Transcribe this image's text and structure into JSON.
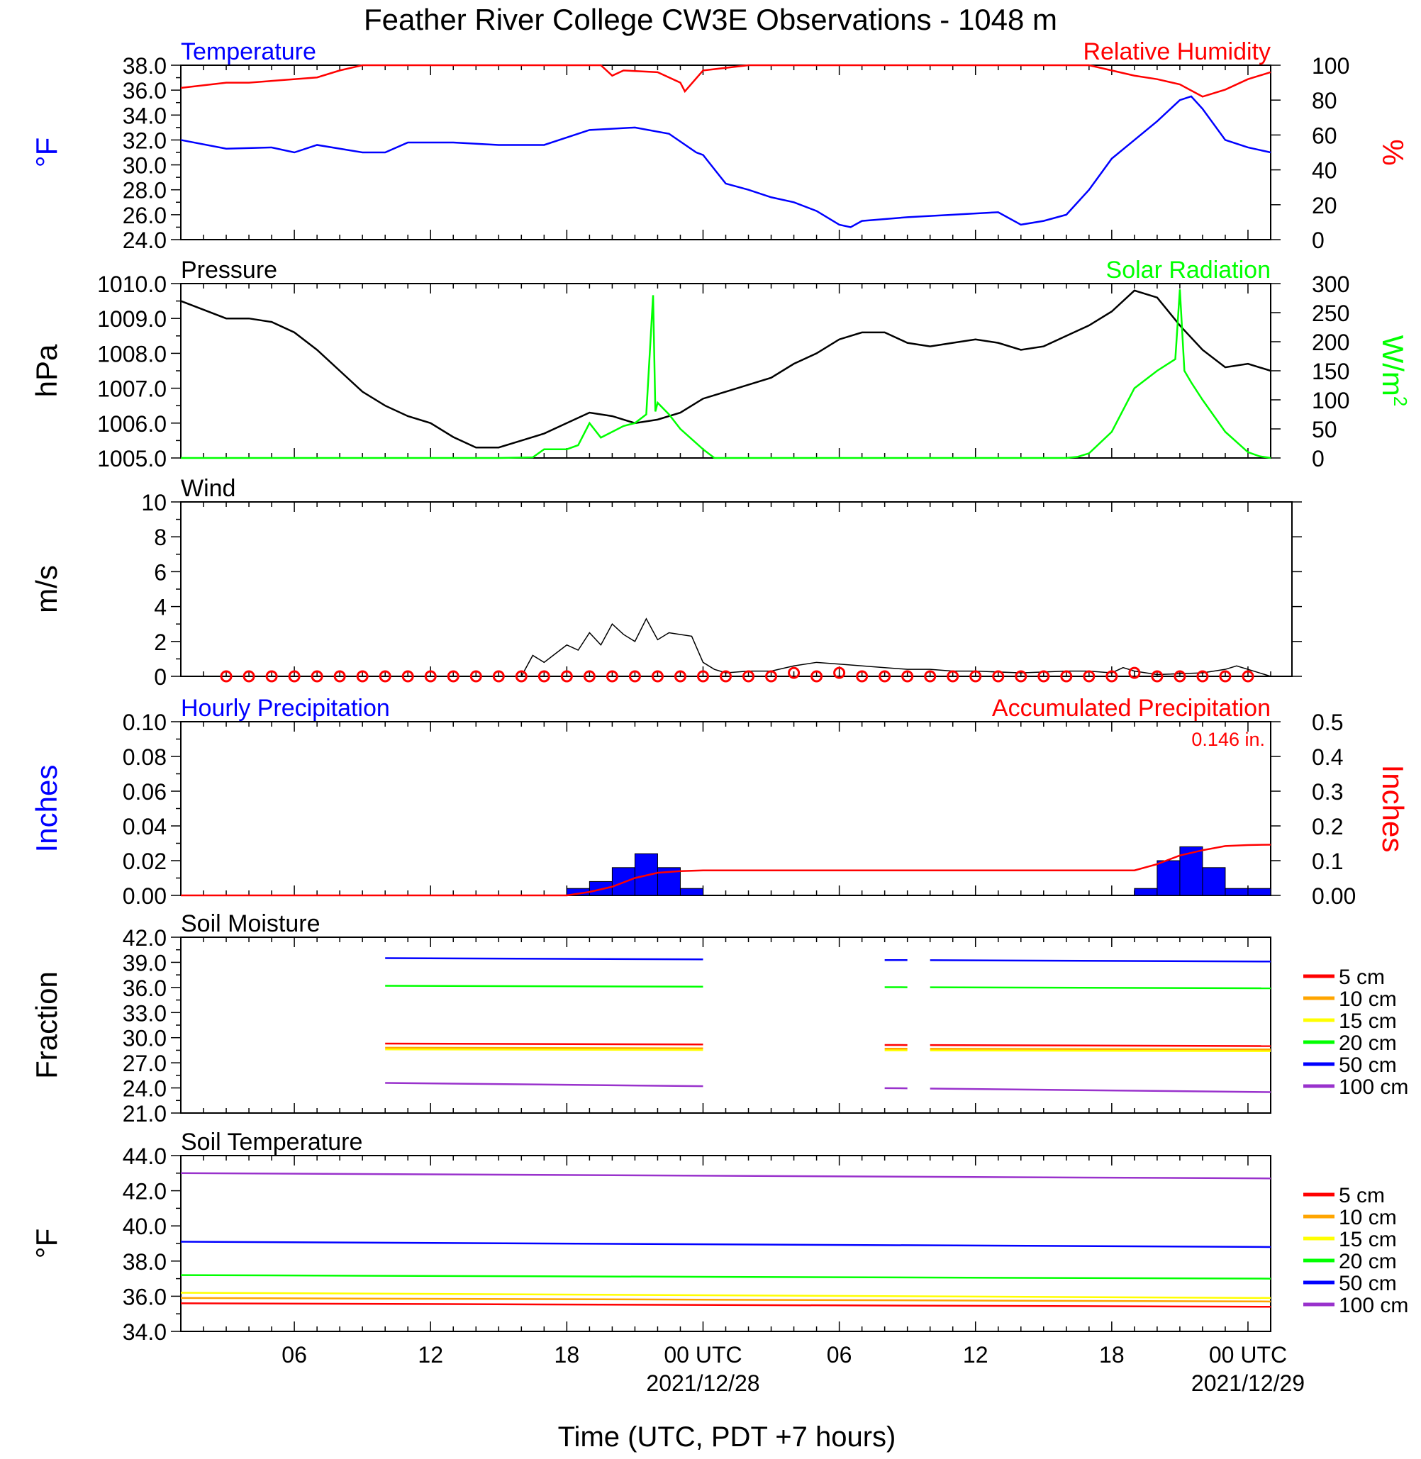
{
  "title": "Feather River College CW3E Observations - 1048 m",
  "xlabel": "Time (UTC, PDT +7 hours)",
  "time_axis": {
    "range_hours": [
      -23,
      25
    ],
    "ticks": [
      {
        "h": -18,
        "label": "06",
        "date": ""
      },
      {
        "h": -12,
        "label": "12",
        "date": ""
      },
      {
        "h": -6,
        "label": "18",
        "date": ""
      },
      {
        "h": 0,
        "label": "00 UTC",
        "date": "2021/12/28"
      },
      {
        "h": 6,
        "label": "06",
        "date": ""
      },
      {
        "h": 12,
        "label": "12",
        "date": ""
      },
      {
        "h": 18,
        "label": "18",
        "date": ""
      },
      {
        "h": 24,
        "label": "00 UTC",
        "date": "2021/12/29"
      }
    ]
  },
  "colors": {
    "temperature": "#0000ff",
    "humidity": "#ff0000",
    "pressure": "#000000",
    "solar": "#00ff00",
    "wind": "#000000",
    "wind_marker": "#ff0000",
    "hourly_precip": "#0000ff",
    "accum_precip": "#ff0000",
    "depth_5": "#ff0000",
    "depth_10": "#ffa500",
    "depth_15": "#ffff00",
    "depth_20": "#00ff00",
    "depth_50": "#0000ff",
    "depth_100": "#9932cc"
  },
  "chart_data": [
    {
      "type": "line",
      "id": "temp_rh",
      "title_left": "Temperature",
      "title_right": "Relative Humidity",
      "ylabel": "°F",
      "ylabel_right": "%",
      "ylim": [
        24,
        38
      ],
      "yticks": [
        "24.0",
        "26.0",
        "28.0",
        "30.0",
        "32.0",
        "34.0",
        "36.0",
        "38.0"
      ],
      "ylim_right": [
        0,
        100
      ],
      "yticks_right": [
        "0",
        "20",
        "40",
        "60",
        "80",
        "100"
      ],
      "series": [
        {
          "name": "Temperature",
          "axis": "left",
          "x": [
            -23,
            -21,
            -19,
            -18,
            -17,
            -15,
            -14,
            -13,
            -11,
            -9,
            -7,
            -5,
            -3,
            -1.5,
            -0.3,
            0,
            1,
            2,
            3,
            4,
            5,
            6,
            6.5,
            7,
            9,
            11,
            13,
            14,
            15,
            16,
            17,
            18,
            19,
            20,
            21,
            21.5,
            22,
            23,
            24,
            25
          ],
          "y": [
            32.0,
            31.3,
            31.4,
            31.0,
            31.6,
            31.0,
            31.0,
            31.8,
            31.8,
            31.6,
            31.6,
            32.8,
            33.0,
            32.5,
            31.0,
            30.8,
            28.5,
            28.0,
            27.4,
            27.0,
            26.3,
            25.2,
            25.0,
            25.5,
            25.8,
            26.0,
            26.2,
            25.2,
            25.5,
            26.0,
            28.0,
            30.5,
            32.0,
            33.5,
            35.2,
            35.5,
            34.5,
            32.0,
            31.4,
            31.0
          ]
        },
        {
          "name": "Relative Humidity",
          "axis": "right",
          "x": [
            -23,
            -21,
            -20,
            -19,
            -17,
            -16,
            -15,
            -12,
            -9,
            -6,
            -4.5,
            -4,
            -3.5,
            -2,
            -1,
            -0.8,
            0,
            2,
            4,
            8,
            12,
            16,
            17,
            18,
            19,
            20,
            21,
            22,
            23,
            24,
            25
          ],
          "y": [
            87,
            90,
            90,
            91,
            93,
            97,
            100,
            100,
            100,
            100,
            100,
            94,
            97,
            96,
            90,
            85,
            97,
            100,
            100,
            100,
            100,
            100,
            100,
            97,
            94,
            92,
            89,
            82,
            86,
            92,
            96
          ]
        }
      ]
    },
    {
      "type": "line",
      "id": "pressure_solar",
      "title_left": "Pressure",
      "title_right": "Solar Radiation",
      "ylabel": "hPa",
      "ylabel_right": "W/m",
      "ylabel_right_sup": "2",
      "ylim": [
        1005,
        1010
      ],
      "yticks": [
        "1005.0",
        "1006.0",
        "1007.0",
        "1008.0",
        "1009.0",
        "1010.0"
      ],
      "ylim_right": [
        0,
        300
      ],
      "yticks_right": [
        "0",
        "50",
        "100",
        "150",
        "200",
        "250",
        "300"
      ],
      "series": [
        {
          "name": "Pressure",
          "axis": "left",
          "x": [
            -23,
            -21,
            -20,
            -19,
            -18,
            -17,
            -16,
            -15,
            -14,
            -13,
            -12,
            -11,
            -10,
            -9,
            -8,
            -7,
            -6,
            -5,
            -4,
            -3,
            -2,
            -1,
            0,
            1,
            2,
            3,
            4,
            5,
            6,
            7,
            8,
            9,
            10,
            11,
            12,
            13,
            14,
            15,
            16,
            17,
            18,
            19,
            20,
            21,
            22,
            23,
            24,
            25
          ],
          "y": [
            1009.5,
            1009.0,
            1009.0,
            1008.9,
            1008.6,
            1008.1,
            1007.5,
            1006.9,
            1006.5,
            1006.2,
            1006.0,
            1005.6,
            1005.3,
            1005.3,
            1005.5,
            1005.7,
            1006.0,
            1006.3,
            1006.2,
            1006.0,
            1006.1,
            1006.3,
            1006.7,
            1006.9,
            1007.1,
            1007.3,
            1007.7,
            1008.0,
            1008.4,
            1008.6,
            1008.6,
            1008.3,
            1008.2,
            1008.3,
            1008.4,
            1008.3,
            1008.1,
            1008.2,
            1008.5,
            1008.8,
            1009.2,
            1009.8,
            1009.6,
            1008.8,
            1008.1,
            1007.6,
            1007.7,
            1007.5
          ]
        },
        {
          "name": "Solar Radiation",
          "axis": "right",
          "x": [
            -23,
            -9,
            -7.5,
            -7,
            -6,
            -5.5,
            -5,
            -4.5,
            -4,
            -3.5,
            -3,
            -2.5,
            -2.2,
            -2.1,
            -2.0,
            -1.5,
            -1,
            0,
            0.5,
            1,
            2,
            14,
            15,
            16,
            16.5,
            17,
            18,
            19,
            20,
            20.8,
            21,
            21.2,
            21.5,
            22,
            23,
            24,
            24.5,
            25
          ],
          "y": [
            0,
            0,
            1,
            15,
            15,
            22,
            60,
            35,
            45,
            55,
            60,
            75,
            280,
            80,
            95,
            75,
            50,
            15,
            0,
            0,
            0,
            0,
            0,
            0,
            2,
            8,
            45,
            120,
            150,
            170,
            290,
            150,
            130,
            100,
            45,
            10,
            3,
            0
          ]
        }
      ]
    },
    {
      "type": "line",
      "id": "wind",
      "title_left": "Wind",
      "ylabel": "m/s",
      "ylim": [
        0,
        10
      ],
      "yticks": [
        "0",
        "2",
        "4",
        "6",
        "8",
        "10"
      ],
      "series": [
        {
          "name": "Wind",
          "axis": "left",
          "x": [
            -23,
            -8,
            -7.5,
            -7,
            -6.5,
            -6,
            -5.5,
            -5,
            -4.5,
            -4,
            -3.5,
            -3,
            -2.5,
            -2,
            -1.5,
            -1,
            -0.5,
            0,
            0.5,
            1,
            2,
            3,
            4,
            5,
            6,
            7,
            8,
            9,
            10,
            11,
            12,
            14,
            16,
            17,
            18,
            18.5,
            19,
            20,
            22,
            23,
            23.5,
            25
          ],
          "y": [
            0,
            0,
            1.2,
            0.8,
            1.3,
            1.8,
            1.5,
            2.5,
            1.8,
            3.0,
            2.4,
            2.0,
            3.3,
            2.1,
            2.5,
            2.4,
            2.3,
            0.8,
            0.4,
            0.2,
            0.3,
            0.3,
            0.6,
            0.8,
            0.7,
            0.6,
            0.5,
            0.4,
            0.4,
            0.3,
            0.3,
            0.2,
            0.3,
            0.3,
            0.2,
            0.5,
            0.3,
            0.1,
            0.2,
            0.4,
            0.6,
            0
          ]
        },
        {
          "name": "Wind barbs",
          "axis": "left",
          "x": [
            -21,
            -20,
            -19,
            -18,
            -17,
            -16,
            -15,
            -14,
            -13,
            -12,
            -11,
            -10,
            -9,
            -8,
            -7,
            -6,
            -5,
            -4,
            -3,
            -2,
            -1,
            0,
            1,
            2,
            3,
            4,
            5,
            6,
            7,
            8,
            9,
            10,
            11,
            12,
            13,
            14,
            15,
            16,
            17,
            18,
            19,
            20,
            21,
            22,
            23,
            24
          ],
          "y": [
            0,
            0,
            0,
            0,
            0,
            0,
            0,
            0,
            0,
            0,
            0,
            0,
            0,
            0,
            0,
            0,
            0,
            0,
            0,
            0,
            0,
            0,
            0,
            0,
            0,
            0.2,
            0,
            0.2,
            0,
            0,
            0,
            0,
            0,
            0,
            0,
            0,
            0,
            0,
            0,
            0,
            0.2,
            0,
            0,
            0,
            0,
            0
          ]
        }
      ]
    },
    {
      "type": "bar",
      "id": "precip",
      "title_left": "Hourly Precipitation",
      "title_right": "Accumulated Precipitation",
      "annotation": "0.146 in.",
      "ylabel": "Inches",
      "ylabel_right": "Inches",
      "ylim": [
        0,
        0.1
      ],
      "yticks": [
        "0.00",
        "0.02",
        "0.04",
        "0.06",
        "0.08",
        "0.10"
      ],
      "ylim_right": [
        0,
        0.5
      ],
      "yticks_right": [
        "0.00",
        "0.1",
        "0.2",
        "0.3",
        "0.4",
        "0.5"
      ],
      "series": [
        {
          "name": "Hourly Precipitation",
          "axis": "left",
          "x": [
            -6,
            -5,
            -4,
            -3,
            -2,
            -1,
            19,
            20,
            21,
            22,
            23,
            24
          ],
          "y": [
            0.004,
            0.008,
            0.016,
            0.024,
            0.016,
            0.004,
            0.004,
            0.02,
            0.028,
            0.016,
            0.004,
            0.004
          ]
        },
        {
          "name": "Accumulated Precipitation",
          "axis": "right",
          "x": [
            -23,
            -6,
            -5,
            -4,
            -3,
            -2,
            -1,
            0,
            19,
            20,
            21,
            22,
            23,
            24,
            25
          ],
          "y": [
            0,
            0,
            0.01,
            0.025,
            0.05,
            0.065,
            0.07,
            0.072,
            0.072,
            0.09,
            0.115,
            0.13,
            0.142,
            0.145,
            0.146
          ]
        }
      ]
    },
    {
      "type": "line",
      "id": "soil_moisture",
      "title_left": "Soil Moisture",
      "ylabel": "Fraction",
      "ylim": [
        21,
        42
      ],
      "yticks": [
        "21.0",
        "24.0",
        "27.0",
        "30.0",
        "33.0",
        "36.0",
        "39.0",
        "42.0"
      ],
      "legend": [
        "5 cm",
        "10 cm",
        "15 cm",
        "20 cm",
        "50 cm",
        "100 cm"
      ],
      "segments": [
        [
          -14,
          0
        ],
        [
          8,
          9
        ],
        [
          10,
          25
        ]
      ],
      "series": [
        {
          "name": "5 cm",
          "start": 29.3,
          "end": 29.0
        },
        {
          "name": "10 cm",
          "start": 28.8,
          "end": 28.6
        },
        {
          "name": "15 cm",
          "start": 28.6,
          "end": 28.4
        },
        {
          "name": "20 cm",
          "start": 36.2,
          "end": 35.9
        },
        {
          "name": "50 cm",
          "start": 39.5,
          "end": 39.1
        },
        {
          "name": "100 cm",
          "start": 24.6,
          "end": 23.5
        }
      ]
    },
    {
      "type": "line",
      "id": "soil_temp",
      "title_left": "Soil Temperature",
      "ylabel": "°F",
      "ylim": [
        34,
        44
      ],
      "yticks": [
        "34.0",
        "36.0",
        "38.0",
        "40.0",
        "42.0",
        "44.0"
      ],
      "legend": [
        "5 cm",
        "10 cm",
        "15 cm",
        "20 cm",
        "50 cm",
        "100 cm"
      ],
      "series": [
        {
          "name": "5 cm",
          "start": 35.6,
          "end": 35.4
        },
        {
          "name": "10 cm",
          "start": 35.9,
          "end": 35.7
        },
        {
          "name": "15 cm",
          "start": 36.2,
          "end": 35.9
        },
        {
          "name": "20 cm",
          "start": 37.2,
          "end": 37.0
        },
        {
          "name": "50 cm",
          "start": 39.1,
          "end": 38.8
        },
        {
          "name": "100 cm",
          "start": 43.0,
          "end": 42.7
        }
      ]
    }
  ]
}
